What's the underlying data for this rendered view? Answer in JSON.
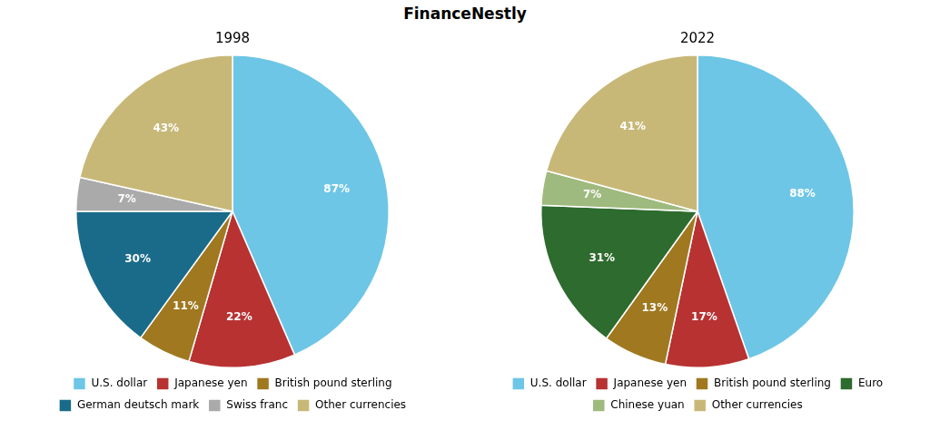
{
  "title": "FinanceNestly",
  "chart_data": [
    {
      "type": "pie",
      "title": "1998",
      "categories": [
        "U.S. dollar",
        "Japanese yen",
        "British pound sterling",
        "German deutsch mark",
        "Swiss franc",
        "Other currencies"
      ],
      "values": [
        87,
        22,
        11,
        30,
        7,
        43
      ],
      "value_labels": [
        "87%",
        "22%",
        "11%",
        "30%",
        "7%",
        "43%"
      ],
      "colors": [
        "#6EC6E6",
        "#B83232",
        "#A07820",
        "#1A6B8A",
        "#AAAAAA",
        "#C8B878"
      ],
      "data_labels": true,
      "legend": "bottom"
    },
    {
      "type": "pie",
      "title": "2022",
      "categories": [
        "U.S. dollar",
        "Japanese yen",
        "British pound sterling",
        "Euro",
        "Chinese yuan",
        "Other currencies"
      ],
      "values": [
        88,
        17,
        13,
        31,
        7,
        41
      ],
      "value_labels": [
        "88%",
        "17%",
        "13%",
        "31%",
        "7%",
        "41%"
      ],
      "colors": [
        "#6EC6E6",
        "#B83232",
        "#A07820",
        "#2E6B2E",
        "#9EBA7E",
        "#C8B878"
      ],
      "data_labels": true,
      "legend": "bottom"
    }
  ]
}
